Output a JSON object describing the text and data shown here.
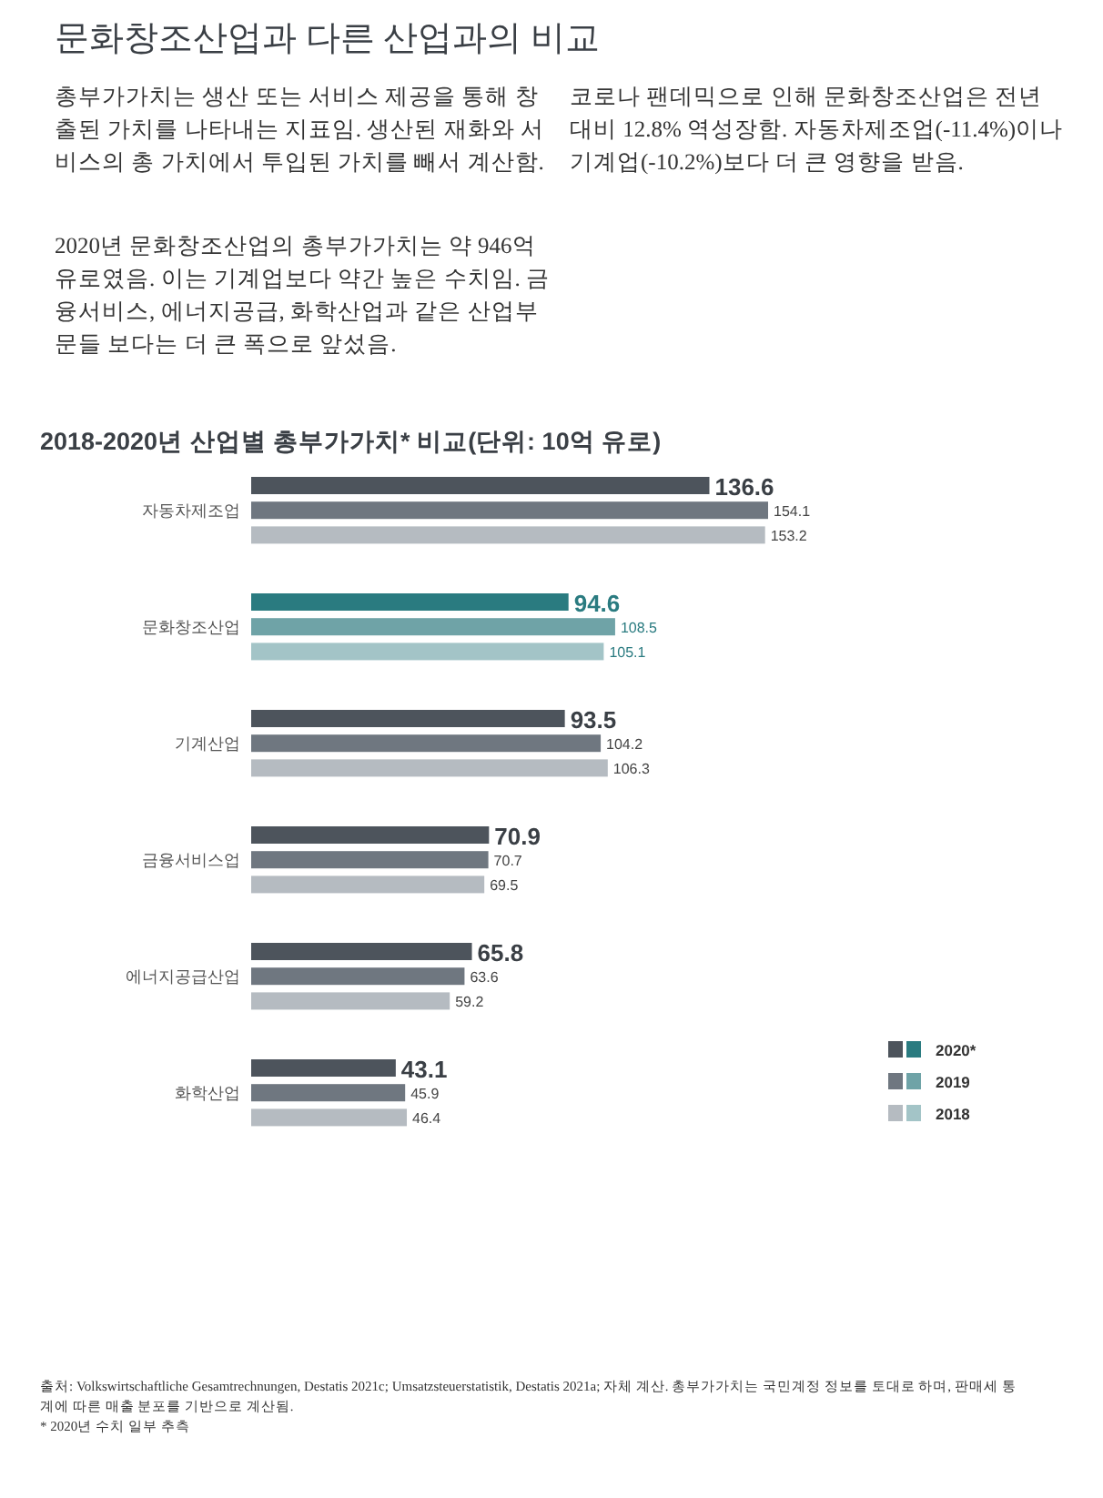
{
  "chart_data": {
    "type": "bar",
    "orientation": "horizontal",
    "title": "2018-2020년 산업별 총부가가치* 비교(단위: 10억 유로)",
    "categories": [
      "자동차제조업",
      "문화창조산업",
      "기계산업",
      "금융서비스업",
      "에너지공급산업",
      "화학산업"
    ],
    "series": [
      {
        "name": "2020*",
        "color": "#4d545c",
        "colors": [
          "#4d545c",
          "#2a7b80",
          "#4d545c",
          "#4d545c",
          "#4d545c",
          "#4d545c"
        ],
        "values": [
          136.6,
          94.6,
          93.5,
          70.9,
          65.8,
          43.1
        ]
      },
      {
        "name": "2019",
        "color": "#6f7780",
        "colors": [
          "#6f7780",
          "#6fa3a7",
          "#6f7780",
          "#6f7780",
          "#6f7780",
          "#6f7780"
        ],
        "values": [
          154.1,
          108.5,
          104.2,
          70.7,
          63.6,
          45.9
        ]
      },
      {
        "name": "2018",
        "color": "#b5bbc1",
        "colors": [
          "#b5bbc1",
          "#a3c4c7",
          "#b5bbc1",
          "#b5bbc1",
          "#b5bbc1",
          "#b5bbc1"
        ],
        "values": [
          153.2,
          105.1,
          106.3,
          69.5,
          59.2,
          46.4
        ]
      }
    ],
    "data_labels": true,
    "legend": "bottom right",
    "annotations": [
      "문화창조산업과 다른 산업과의 비교",
      "총부가가치는 생산 또는 서비스 제공을 통해 창출된 가치를 나타내는 지표임. 생산된 재화와 서비스의 총 가치에서 투입된 가치를 빼서 계산함.",
      "2020년 문화창조산업의 총부가가치는 약 946억 유로였음. 이는 기계업보다 약간 높은 수치임. 금융서비스, 에너지공급, 화학산업과 같은 산업부문들 보다는 더 큰 폭으로 앞섰음.",
      "코로나 팬데믹으로 인해 문화창조산업은 전년 대비 12.8% 역성장함. 자동차제조업(-11.4%)이나 기계업(-10.2%)보다 더 큰 영향을 받음.",
      "출처: Volkswirtschaftliche Gesamtrechnungen, Destatis 2021c; Umsatzsteuerstatistik, Destatis 2021a; 자체 계산. 총부가가치는 국민계정 정보를 토대로 하며, 판매세 통계에 따른 매출 분포를 기반으로 계산됨.",
      "* 2020년 수치 일부 추측"
    ]
  }
}
